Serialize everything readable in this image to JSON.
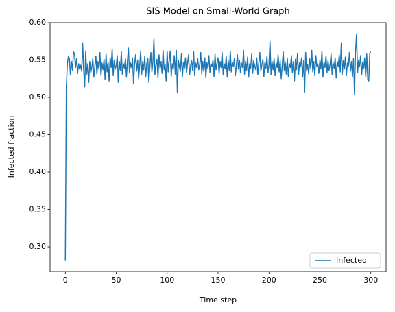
{
  "chart_data": {
    "type": "line",
    "title": "SIS Model on Small-World Graph",
    "xlabel": "Time step",
    "ylabel": "Infected fraction",
    "x": [
      0,
      1,
      2,
      3,
      4,
      5,
      6,
      7,
      8,
      9,
      10,
      11,
      12,
      13,
      14,
      15,
      16,
      17,
      18,
      19,
      20,
      21,
      22,
      23,
      24,
      25,
      26,
      27,
      28,
      29,
      30,
      31,
      32,
      33,
      34,
      35,
      36,
      37,
      38,
      39,
      40,
      41,
      42,
      43,
      44,
      45,
      46,
      47,
      48,
      49,
      50,
      51,
      52,
      53,
      54,
      55,
      56,
      57,
      58,
      59,
      60,
      61,
      62,
      63,
      64,
      65,
      66,
      67,
      68,
      69,
      70,
      71,
      72,
      73,
      74,
      75,
      76,
      77,
      78,
      79,
      80,
      81,
      82,
      83,
      84,
      85,
      86,
      87,
      88,
      89,
      90,
      91,
      92,
      93,
      94,
      95,
      96,
      97,
      98,
      99,
      100,
      101,
      102,
      103,
      104,
      105,
      106,
      107,
      108,
      109,
      110,
      111,
      112,
      113,
      114,
      115,
      116,
      117,
      118,
      119,
      120,
      121,
      122,
      123,
      124,
      125,
      126,
      127,
      128,
      129,
      130,
      131,
      132,
      133,
      134,
      135,
      136,
      137,
      138,
      139,
      140,
      141,
      142,
      143,
      144,
      145,
      146,
      147,
      148,
      149,
      150,
      151,
      152,
      153,
      154,
      155,
      156,
      157,
      158,
      159,
      160,
      161,
      162,
      163,
      164,
      165,
      166,
      167,
      168,
      169,
      170,
      171,
      172,
      173,
      174,
      175,
      176,
      177,
      178,
      179,
      180,
      181,
      182,
      183,
      184,
      185,
      186,
      187,
      188,
      189,
      190,
      191,
      192,
      193,
      194,
      195,
      196,
      197,
      198,
      199,
      200,
      201,
      202,
      203,
      204,
      205,
      206,
      207,
      208,
      209,
      210,
      211,
      212,
      213,
      214,
      215,
      216,
      217,
      218,
      219,
      220,
      221,
      222,
      223,
      224,
      225,
      226,
      227,
      228,
      229,
      230,
      231,
      232,
      233,
      234,
      235,
      236,
      237,
      238,
      239,
      240,
      241,
      242,
      243,
      244,
      245,
      246,
      247,
      248,
      249,
      250,
      251,
      252,
      253,
      254,
      255,
      256,
      257,
      258,
      259,
      260,
      261,
      262,
      263,
      264,
      265,
      266,
      267,
      268,
      269,
      270,
      271,
      272,
      273,
      274,
      275,
      276,
      277,
      278,
      279,
      280,
      281,
      282,
      283,
      284,
      285,
      286,
      287,
      288,
      289,
      290,
      291,
      292,
      293,
      294,
      295,
      296,
      297,
      298,
      299,
      300
    ],
    "series": [
      {
        "name": "Infected",
        "color": "#1f77b4",
        "values": [
          0.282,
          0.515,
          0.545,
          0.555,
          0.552,
          0.53,
          0.548,
          0.536,
          0.561,
          0.558,
          0.54,
          0.552,
          0.532,
          0.545,
          0.538,
          0.543,
          0.535,
          0.573,
          0.537,
          0.514,
          0.562,
          0.53,
          0.545,
          0.52,
          0.548,
          0.533,
          0.54,
          0.552,
          0.527,
          0.542,
          0.555,
          0.531,
          0.548,
          0.538,
          0.56,
          0.529,
          0.546,
          0.537,
          0.551,
          0.524,
          0.558,
          0.534,
          0.547,
          0.522,
          0.553,
          0.54,
          0.565,
          0.529,
          0.55,
          0.538,
          0.543,
          0.556,
          0.52,
          0.548,
          0.536,
          0.561,
          0.531,
          0.545,
          0.539,
          0.552,
          0.527,
          0.549,
          0.566,
          0.533,
          0.546,
          0.54,
          0.553,
          0.518,
          0.544,
          0.557,
          0.535,
          0.55,
          0.525,
          0.542,
          0.562,
          0.531,
          0.548,
          0.537,
          0.555,
          0.528,
          0.545,
          0.552,
          0.52,
          0.541,
          0.56,
          0.534,
          0.547,
          0.578,
          0.53,
          0.543,
          0.551,
          0.526,
          0.557,
          0.539,
          0.548,
          0.532,
          0.563,
          0.537,
          0.544,
          0.522,
          0.562,
          0.534,
          0.549,
          0.562,
          0.528,
          0.545,
          0.538,
          0.556,
          0.531,
          0.563,
          0.506,
          0.55,
          0.541,
          0.535,
          0.558,
          0.528,
          0.547,
          0.539,
          0.553,
          0.533,
          0.545,
          0.557,
          0.53,
          0.542,
          0.549,
          0.536,
          0.561,
          0.529,
          0.546,
          0.54,
          0.552,
          0.537,
          0.544,
          0.56,
          0.531,
          0.548,
          0.535,
          0.553,
          0.526,
          0.547,
          0.539,
          0.556,
          0.533,
          0.545,
          0.541,
          0.55,
          0.528,
          0.558,
          0.537,
          0.546,
          0.553,
          0.532,
          0.548,
          0.54,
          0.56,
          0.53,
          0.545,
          0.538,
          0.555,
          0.527,
          0.549,
          0.536,
          0.562,
          0.534,
          0.547,
          0.541,
          0.552,
          0.529,
          0.544,
          0.557,
          0.538,
          0.55,
          0.533,
          0.546,
          0.54,
          0.563,
          0.531,
          0.548,
          0.536,
          0.554,
          0.527,
          0.545,
          0.539,
          0.558,
          0.532,
          0.549,
          0.542,
          0.537,
          0.553,
          0.53,
          0.546,
          0.56,
          0.535,
          0.543,
          0.551,
          0.528,
          0.547,
          0.539,
          0.555,
          0.533,
          0.544,
          0.575,
          0.53,
          0.548,
          0.537,
          0.552,
          0.529,
          0.546,
          0.54,
          0.557,
          0.534,
          0.549,
          0.525,
          0.543,
          0.561,
          0.536,
          0.547,
          0.531,
          0.553,
          0.528,
          0.545,
          0.54,
          0.556,
          0.533,
          0.548,
          0.522,
          0.551,
          0.537,
          0.559,
          0.53,
          0.546,
          0.541,
          0.553,
          0.527,
          0.549,
          0.507,
          0.56,
          0.535,
          0.544,
          0.531,
          0.552,
          0.539,
          0.563,
          0.534,
          0.548,
          0.529,
          0.556,
          0.541,
          0.545,
          0.532,
          0.55,
          0.538,
          0.562,
          0.527,
          0.547,
          0.54,
          0.555,
          0.533,
          0.549,
          0.536,
          0.544,
          0.558,
          0.53,
          0.546,
          0.539,
          0.553,
          0.526,
          0.548,
          0.541,
          0.557,
          0.534,
          0.573,
          0.531,
          0.549,
          0.538,
          0.554,
          0.529,
          0.546,
          0.542,
          0.56,
          0.535,
          0.548,
          0.528,
          0.552,
          0.504,
          0.561,
          0.585,
          0.533,
          0.55,
          0.541,
          0.556,
          0.53,
          0.547,
          0.539,
          0.553,
          0.527,
          0.558,
          0.524,
          0.522,
          0.559,
          0.561
        ]
      }
    ],
    "xlim": [
      -15,
      315
    ],
    "xticks": [
      0,
      50,
      100,
      150,
      200,
      250,
      300
    ],
    "ylim": [
      0.267,
      0.6
    ],
    "yticks": [
      {
        "value": 0.3,
        "label": "0.30"
      },
      0.35,
      {
        "value": 0.4,
        "label": "0.40"
      },
      0.45,
      {
        "value": 0.5,
        "label": "0.50"
      },
      0.55,
      {
        "value": 0.6,
        "label": "0.60"
      }
    ],
    "legend": "lower right"
  }
}
